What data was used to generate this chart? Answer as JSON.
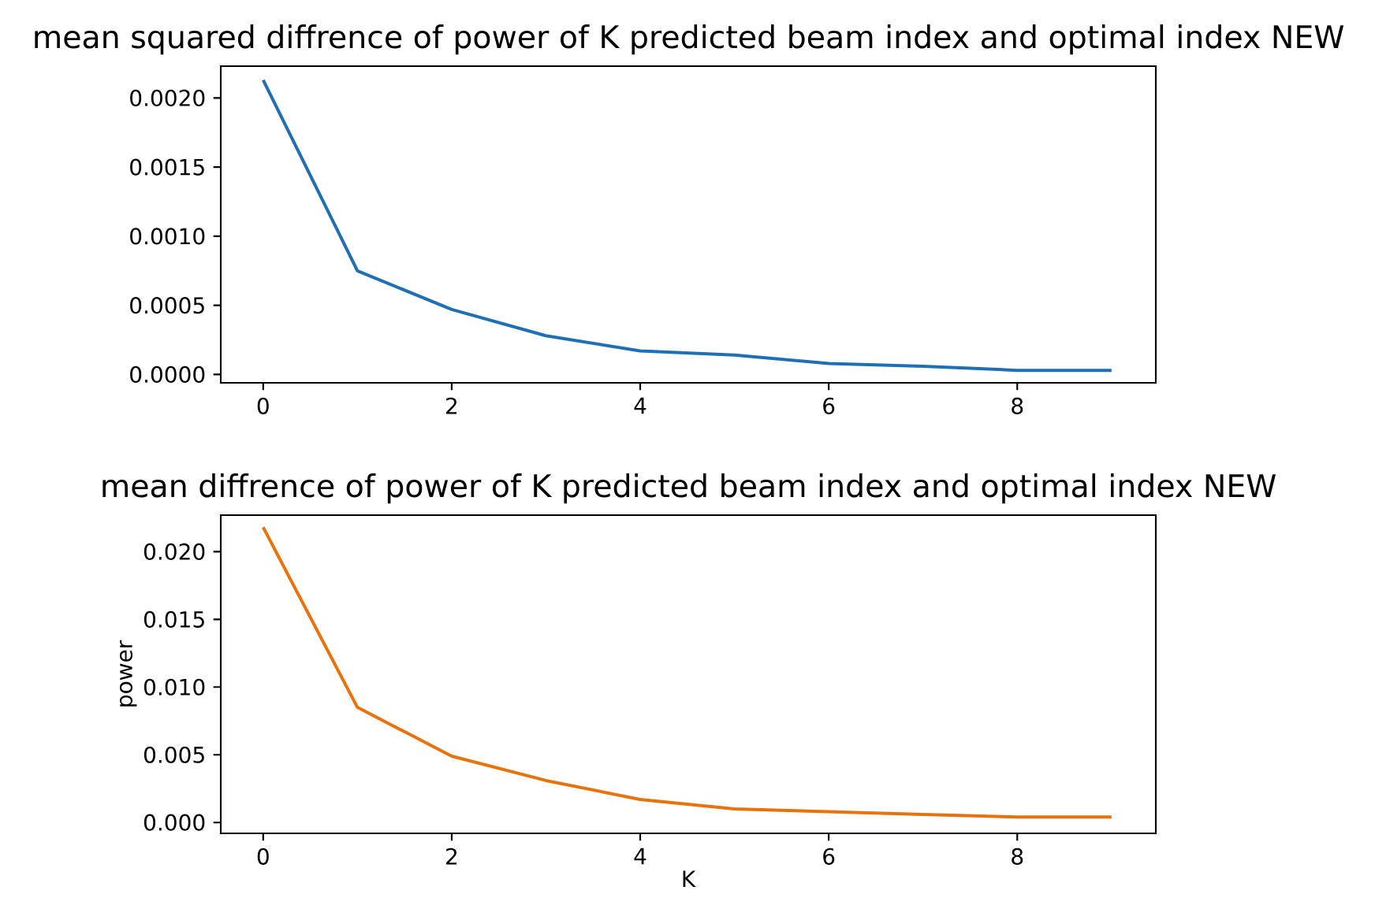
{
  "chart_data": [
    {
      "type": "line",
      "title": "mean squared diffrence of power of K predicted beam index and optimal index NEW",
      "x": [
        0,
        1,
        2,
        3,
        4,
        5,
        6,
        7,
        8,
        9
      ],
      "series": [
        {
          "color": "#1f6fb4",
          "values": [
            0.00213,
            0.00075,
            0.00047,
            0.00028,
            0.00017,
            0.00014,
            8e-05,
            6e-05,
            3e-05,
            3e-05
          ]
        }
      ],
      "xlim": [
        -0.45,
        9.47
      ],
      "ylim": [
        -6e-05,
        0.00223
      ],
      "xticks": [
        0,
        2,
        4,
        6,
        8
      ],
      "yticks": [
        {
          "value": 0,
          "label": "0.0000"
        },
        {
          "value": 0.0005,
          "label": "0.0005"
        },
        {
          "value": 0.001,
          "label": "0.0010"
        },
        {
          "value": 0.0015,
          "label": "0.0015"
        },
        {
          "value": 0.002,
          "label": "0.0020"
        }
      ]
    },
    {
      "type": "line",
      "title": "mean diffrence of power of K predicted beam index and optimal index NEW",
      "xlabel": "K",
      "ylabel": "power",
      "x": [
        0,
        1,
        2,
        3,
        4,
        5,
        6,
        7,
        8,
        9
      ],
      "series": [
        {
          "color": "#e8720c",
          "values": [
            0.0218,
            0.0085,
            0.0049,
            0.0031,
            0.0017,
            0.001,
            0.0008,
            0.0006,
            0.0004,
            0.0004
          ]
        }
      ],
      "xlim": [
        -0.45,
        9.47
      ],
      "ylim": [
        -0.0008,
        0.0227
      ],
      "xticks": [
        0,
        2,
        4,
        6,
        8
      ],
      "yticks": [
        {
          "value": 0,
          "label": "0.000"
        },
        {
          "value": 0.005,
          "label": "0.005"
        },
        {
          "value": 0.01,
          "label": "0.010"
        },
        {
          "value": 0.015,
          "label": "0.015"
        },
        {
          "value": 0.02,
          "label": "0.020"
        }
      ]
    }
  ]
}
